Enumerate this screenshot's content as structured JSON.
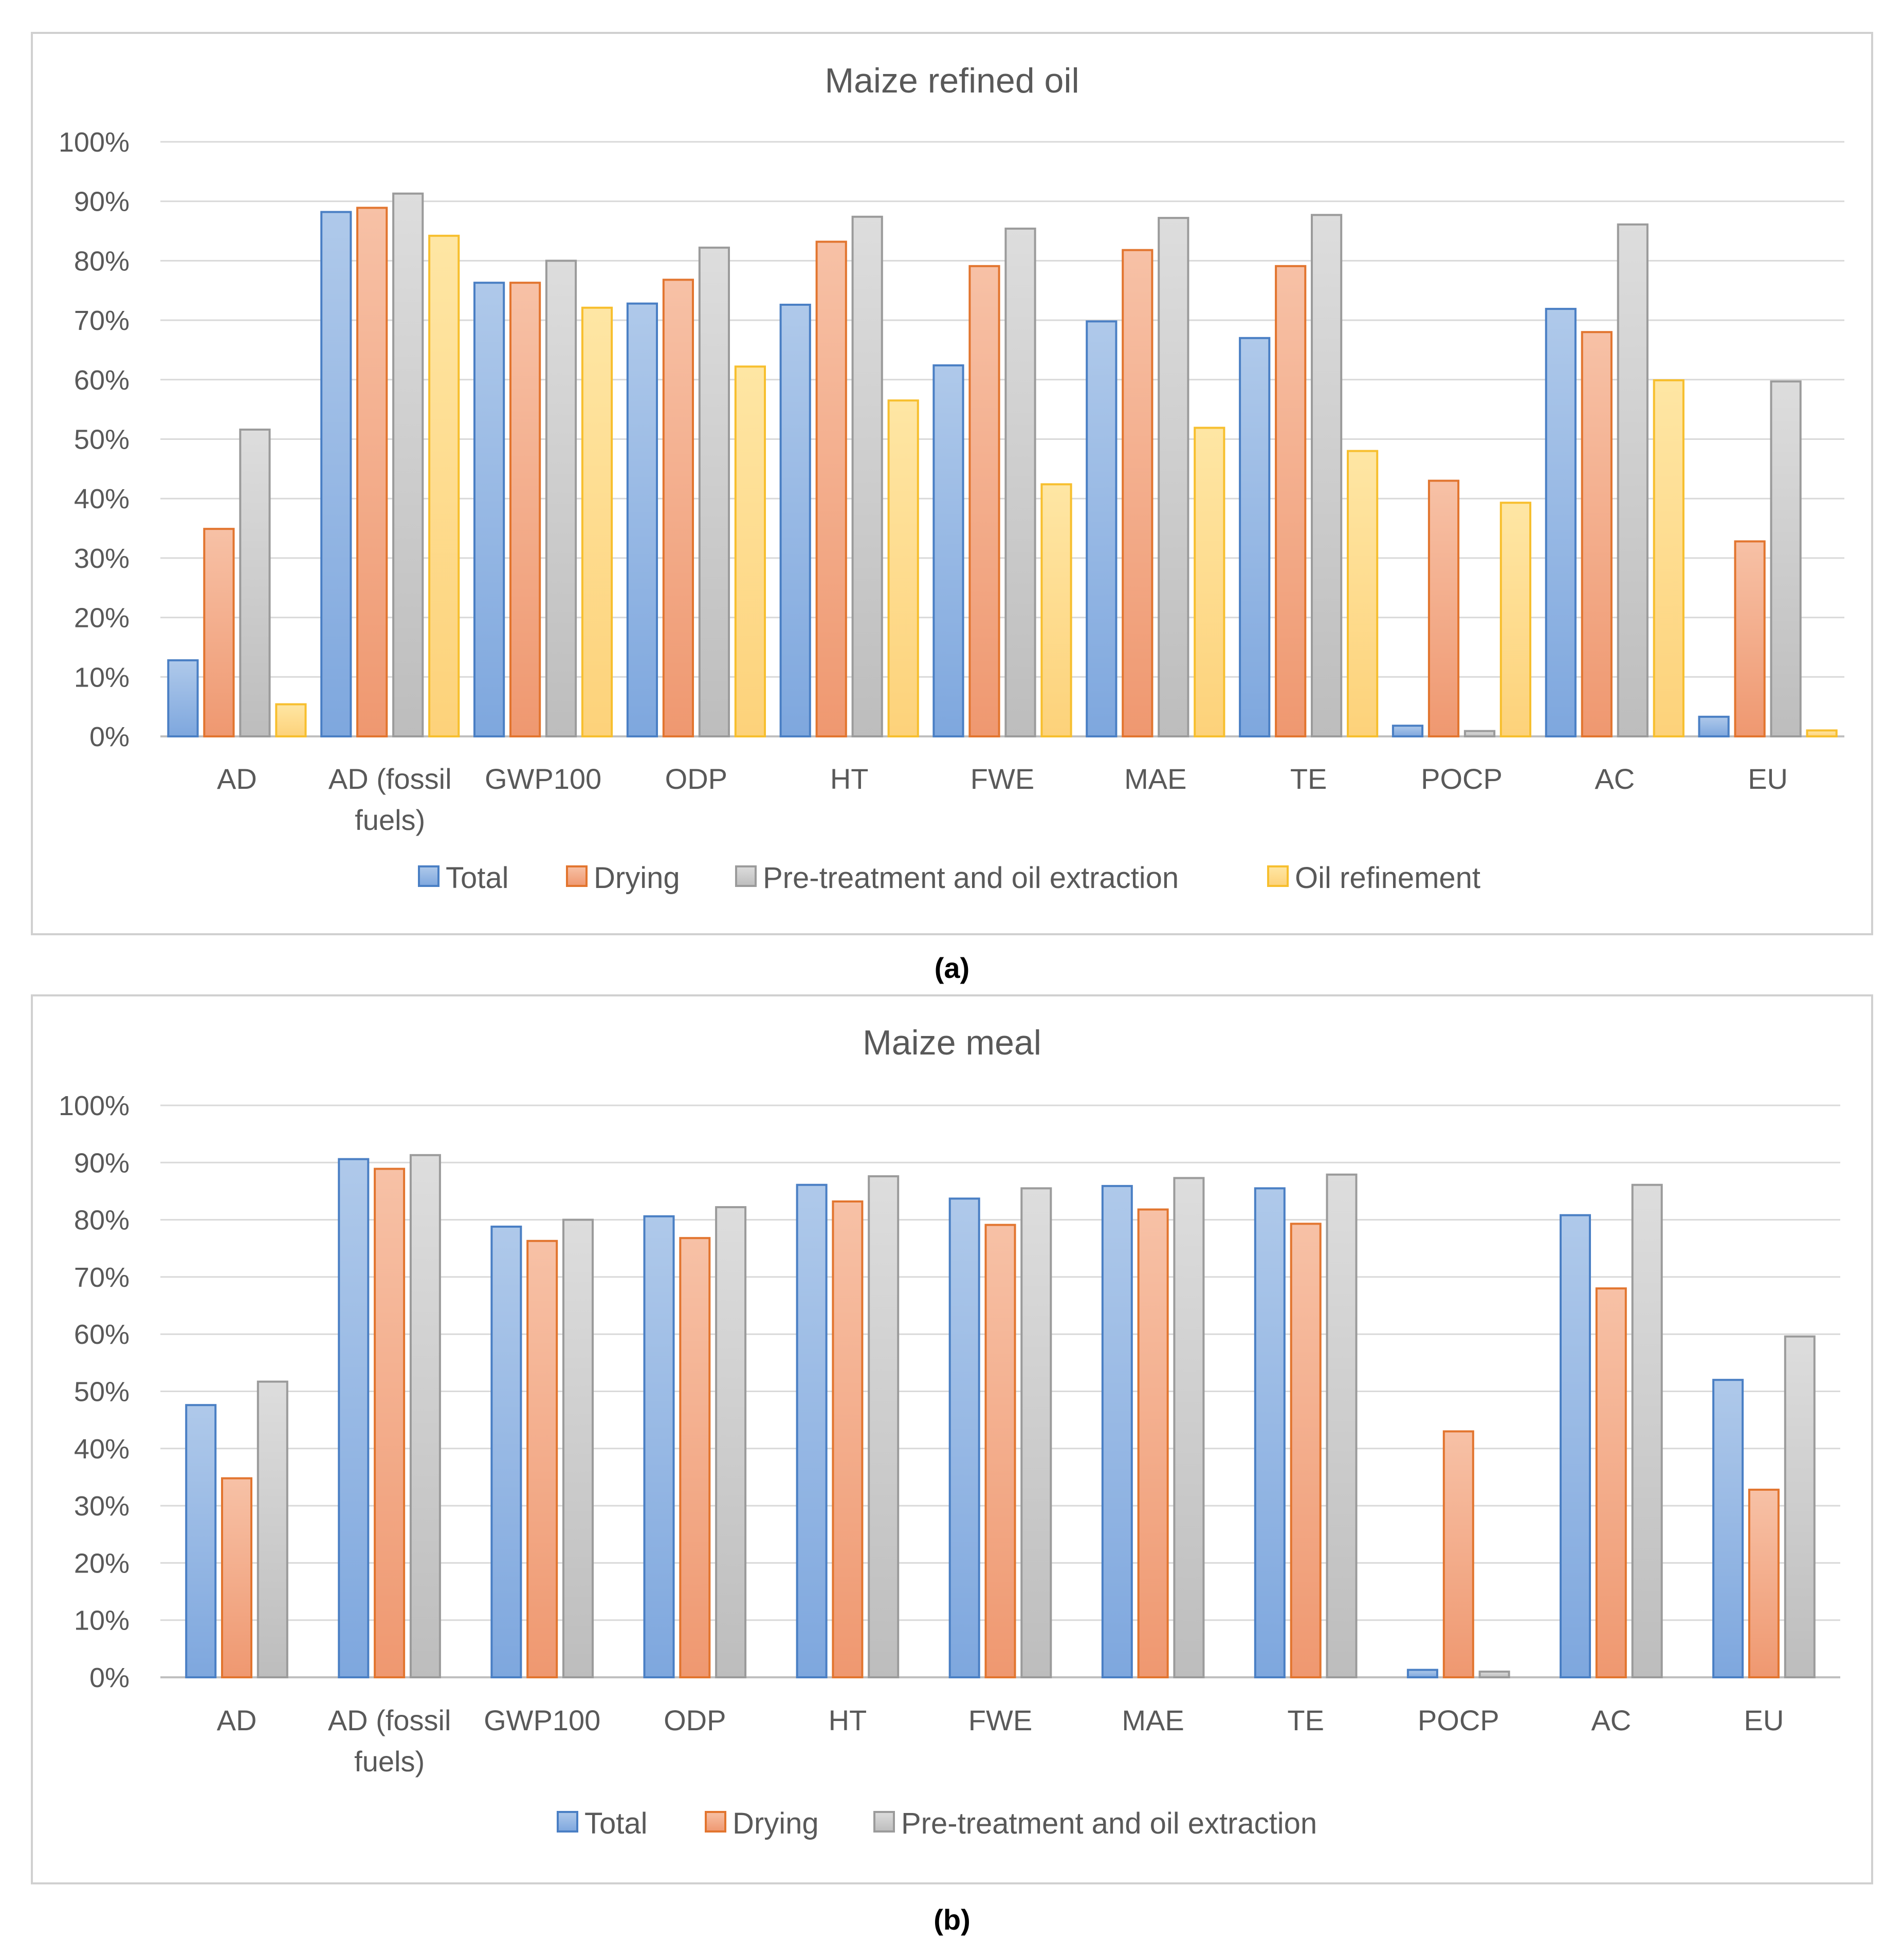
{
  "panels": [
    {
      "caption": "(a)"
    },
    {
      "caption": "(b)"
    }
  ],
  "chart_data": [
    {
      "type": "bar",
      "title": "Maize refined oil",
      "xlabel": "",
      "ylabel": "",
      "ylim": [
        0,
        100
      ],
      "yticks": [
        "0%",
        "10%",
        "20%",
        "30%",
        "40%",
        "50%",
        "60%",
        "70%",
        "80%",
        "90%",
        "100%"
      ],
      "grid": true,
      "legend_position": "bottom",
      "categories": [
        "AD",
        "AD (fossil fuels)",
        "GWP100",
        "ODP",
        "HT",
        "FWE",
        "MAE",
        "TE",
        "POCP",
        "AC",
        "EU"
      ],
      "category_lines": [
        [
          "AD"
        ],
        [
          "AD (fossil",
          "fuels)"
        ],
        [
          "GWP100"
        ],
        [
          "ODP"
        ],
        [
          "HT"
        ],
        [
          "FWE"
        ],
        [
          "MAE"
        ],
        [
          "TE"
        ],
        [
          "POCP"
        ],
        [
          "AC"
        ],
        [
          "EU"
        ]
      ],
      "series": [
        {
          "name": "Total",
          "values": [
            12.8,
            88.2,
            76.3,
            72.8,
            72.6,
            62.4,
            69.8,
            67.0,
            1.8,
            71.9,
            3.3
          ]
        },
        {
          "name": "Drying",
          "values": [
            34.9,
            88.9,
            76.3,
            76.8,
            83.2,
            79.1,
            81.8,
            79.1,
            43.0,
            68.0,
            32.8
          ]
        },
        {
          "name": "Pre-treatment and oil extraction",
          "values": [
            51.6,
            91.3,
            80.0,
            82.2,
            87.4,
            85.4,
            87.2,
            87.7,
            0.9,
            86.1,
            59.7
          ]
        },
        {
          "name": "Oil refinement",
          "values": [
            5.4,
            84.2,
            72.1,
            62.2,
            56.5,
            42.4,
            51.9,
            48.0,
            39.3,
            59.9,
            1.0
          ]
        }
      ]
    },
    {
      "type": "bar",
      "title": "Maize meal",
      "xlabel": "",
      "ylabel": "",
      "ylim": [
        0,
        100
      ],
      "yticks": [
        "0%",
        "10%",
        "20%",
        "30%",
        "40%",
        "50%",
        "60%",
        "70%",
        "80%",
        "90%",
        "100%"
      ],
      "grid": true,
      "legend_position": "bottom",
      "categories": [
        "AD",
        "AD (fossil fuels)",
        "GWP100",
        "ODP",
        "HT",
        "FWE",
        "MAE",
        "TE",
        "POCP",
        "AC",
        "EU"
      ],
      "category_lines": [
        [
          "AD"
        ],
        [
          "AD (fossil",
          "fuels)"
        ],
        [
          "GWP100"
        ],
        [
          "ODP"
        ],
        [
          "HT"
        ],
        [
          "FWE"
        ],
        [
          "MAE"
        ],
        [
          "TE"
        ],
        [
          "POCP"
        ],
        [
          "AC"
        ],
        [
          "EU"
        ]
      ],
      "series": [
        {
          "name": "Total",
          "values": [
            47.6,
            90.6,
            78.8,
            80.6,
            86.1,
            83.7,
            85.9,
            85.5,
            1.3,
            80.8,
            52.0
          ]
        },
        {
          "name": "Drying",
          "values": [
            34.8,
            88.9,
            76.3,
            76.8,
            83.2,
            79.1,
            81.8,
            79.3,
            43.0,
            68.0,
            32.8
          ]
        },
        {
          "name": "Pre-treatment and oil extraction",
          "values": [
            51.7,
            91.3,
            80.0,
            82.2,
            87.6,
            85.5,
            87.3,
            87.9,
            1.0,
            86.1,
            59.6
          ]
        }
      ]
    }
  ],
  "series_styles": [
    {
      "name": "Total",
      "fill_top": "#AFC9EA",
      "fill_bottom": "#7EA7DE",
      "stroke": "#4A7FC4"
    },
    {
      "name": "Drying",
      "fill_top": "#F7C1A6",
      "fill_bottom": "#EF9870",
      "stroke": "#E2752F"
    },
    {
      "name": "Pre-treatment and oil extraction",
      "fill_top": "#DDDDDD",
      "fill_bottom": "#BDBDBD",
      "stroke": "#9B9B9B"
    },
    {
      "name": "Oil refinement",
      "fill_top": "#FEE6A4",
      "fill_bottom": "#FDD27A",
      "stroke": "#F7BF2E"
    }
  ],
  "colors": {
    "title": "#595959",
    "axis_text": "#595959",
    "gridline": "#D9D9D9",
    "panel_border": "#D0D0D0",
    "caption": "#000000"
  }
}
